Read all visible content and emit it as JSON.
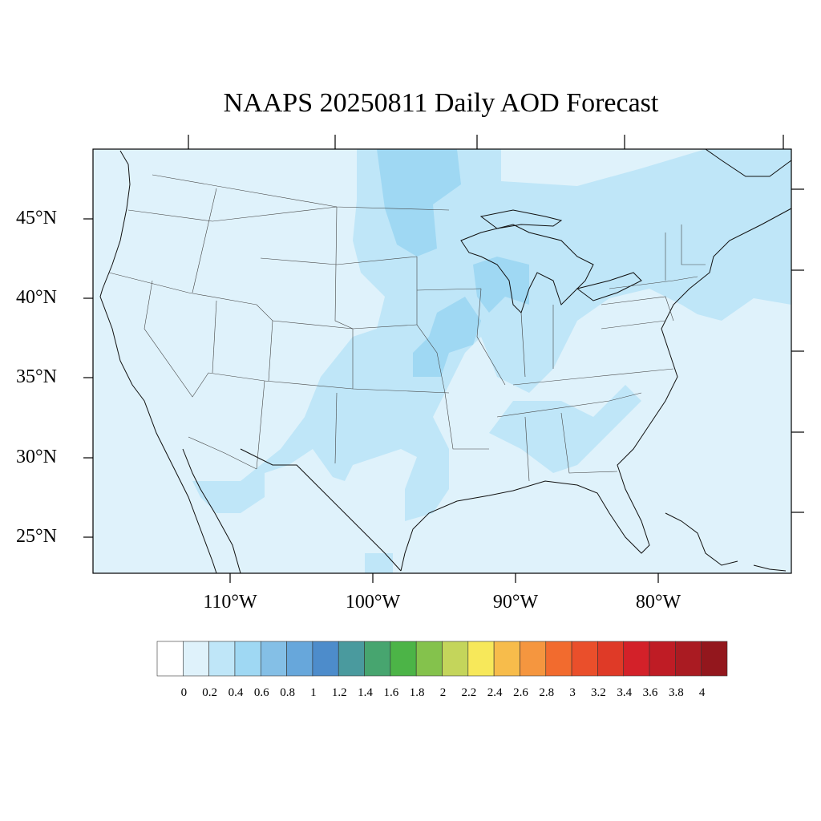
{
  "title": "NAAPS 20250811 Daily AOD Forecast",
  "lat_labels": [
    "45°N",
    "40°N",
    "35°N",
    "30°N",
    "25°N"
  ],
  "lon_labels": [
    "110°W",
    "100°W",
    "90°W",
    "80°W"
  ],
  "colorbar": {
    "labels": [
      "0",
      "0.2",
      "0.4",
      "0.6",
      "0.8",
      "1",
      "1.2",
      "1.4",
      "1.6",
      "1.8",
      "2",
      "2.2",
      "2.4",
      "2.6",
      "2.8",
      "3",
      "3.2",
      "3.4",
      "3.6",
      "3.8",
      "4"
    ],
    "colors": [
      "#ffffff",
      "#dff2fb",
      "#bfe6f8",
      "#9fd8f3",
      "#84bfe6",
      "#67a7db",
      "#4d8ccb",
      "#4a9a9e",
      "#47a56f",
      "#4cb447",
      "#84c24c",
      "#c4d55b",
      "#f7e85a",
      "#f7bc4b",
      "#f5963f",
      "#f26b2e",
      "#ea4f2b",
      "#df3a27",
      "#d32129",
      "#bf1c25",
      "#aa1b22",
      "#93171d"
    ]
  },
  "aod_field": {
    "background_level": "0.2",
    "elevated_level": "0.4",
    "peak_level": "0.6"
  }
}
